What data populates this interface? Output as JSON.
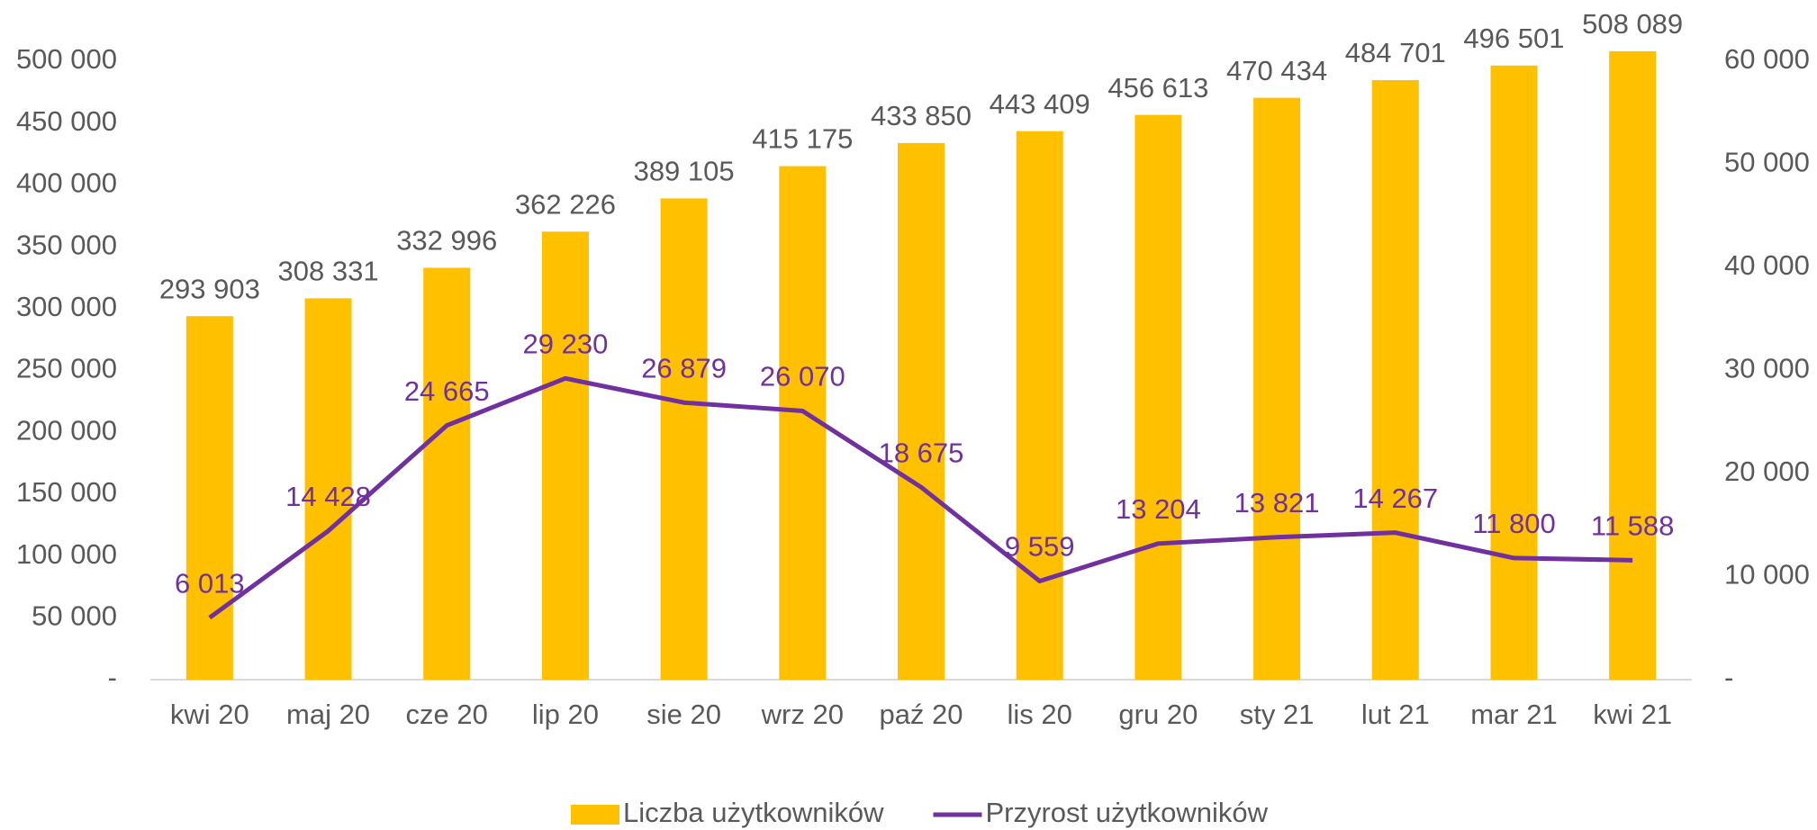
{
  "chart_data": {
    "type": "bar_line",
    "categories": [
      "kwi 20",
      "maj 20",
      "cze 20",
      "lip 20",
      "sie 20",
      "wrz 20",
      "paź 20",
      "lis 20",
      "gru 20",
      "sty 21",
      "lut 21",
      "mar 21",
      "kwi 21"
    ],
    "series": [
      {
        "name": "Liczba użytkowników",
        "color": "#ffc000",
        "type": "bar",
        "values": [
          293903,
          308331,
          332996,
          362226,
          389105,
          415175,
          433850,
          443409,
          456613,
          470434,
          484701,
          496501,
          508089
        ],
        "value_labels": [
          "293 903",
          "308 331",
          "332 996",
          "362 226",
          "389 105",
          "415 175",
          "433 850",
          "443 409",
          "456 613",
          "470 434",
          "484 701",
          "496 501",
          "508 089"
        ]
      },
      {
        "name": "Przyrost użytkowników",
        "color": "#7030a0",
        "type": "line",
        "axis": "y2",
        "values": [
          6013,
          14428,
          24665,
          29230,
          26879,
          26070,
          18675,
          9559,
          13204,
          13821,
          14267,
          11800,
          11588
        ],
        "value_labels": [
          "6 013",
          "14 428",
          "24 665",
          "29 230",
          "26 879",
          "26 070",
          "18 675",
          "9 559",
          "13 204",
          "13 821",
          "14 267",
          "11 800",
          "11 588"
        ]
      }
    ],
    "ylim": [
      0,
      500000
    ],
    "yticks": [
      {
        "value": 0,
        "label": "-"
      },
      {
        "value": 50000,
        "label": "50 000"
      },
      {
        "value": 100000,
        "label": "100 000"
      },
      {
        "value": 150000,
        "label": "150 000"
      },
      {
        "value": 200000,
        "label": "200 000"
      },
      {
        "value": 250000,
        "label": "250 000"
      },
      {
        "value": 300000,
        "label": "300 000"
      },
      {
        "value": 350000,
        "label": "350 000"
      },
      {
        "value": 400000,
        "label": "400 000"
      },
      {
        "value": 450000,
        "label": "450 000"
      },
      {
        "value": 500000,
        "label": "500 000"
      }
    ],
    "y2lim": [
      0,
      60000
    ],
    "y2ticks": [
      {
        "value": 0,
        "label": "-"
      },
      {
        "value": 10000,
        "label": "10 000"
      },
      {
        "value": 20000,
        "label": "20 000"
      },
      {
        "value": 30000,
        "label": "30 000"
      },
      {
        "value": 40000,
        "label": "40 000"
      },
      {
        "value": 50000,
        "label": "50 000"
      },
      {
        "value": 60000,
        "label": "60 000"
      }
    ],
    "grid": false,
    "legend": "bottom"
  }
}
